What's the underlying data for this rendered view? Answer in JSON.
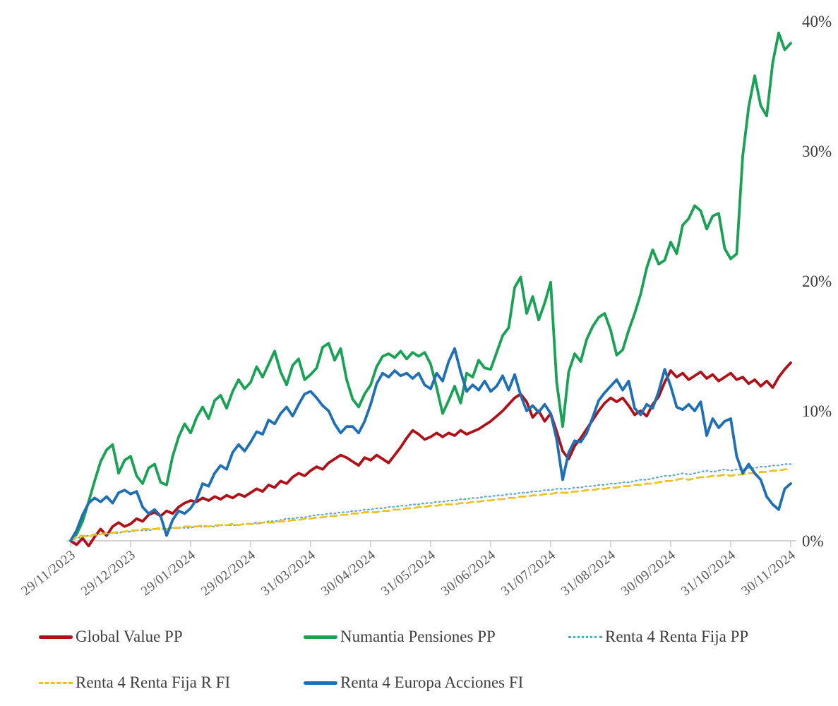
{
  "chart_data": {
    "type": "line",
    "title": "",
    "xlabel": "",
    "ylabel": "",
    "grid": false,
    "legend_position": "bottom",
    "y_axis_side": "right",
    "ylim": [
      -1,
      40
    ],
    "y_ticks": [
      {
        "label": "0%",
        "value": 0
      },
      {
        "label": "10%",
        "value": 10
      },
      {
        "label": "20%",
        "value": 20
      },
      {
        "label": "30%",
        "value": 30
      },
      {
        "label": "40%",
        "value": 40
      }
    ],
    "x_tick_labels": [
      "29/11/2023",
      "29/12/2023",
      "29/01/2024",
      "29/02/2024",
      "31/03/2024",
      "30/04/2024",
      "31/05/2024",
      "30/06/2024",
      "31/07/2024",
      "31/08/2024",
      "30/09/2024",
      "31/10/2024",
      "30/11/2024"
    ],
    "series": [
      {
        "name": "Global Value PP",
        "color": "#AE1117",
        "style": "solid",
        "values": [
          0.0,
          -0.3,
          0.2,
          -0.4,
          0.3,
          0.9,
          0.4,
          1.1,
          1.4,
          1.1,
          1.3,
          1.7,
          1.5,
          2.0,
          2.2,
          1.9,
          2.3,
          2.1,
          2.6,
          2.9,
          3.1,
          3.0,
          3.3,
          3.1,
          3.4,
          3.2,
          3.5,
          3.3,
          3.6,
          3.4,
          3.7,
          4.0,
          3.8,
          4.3,
          4.1,
          4.6,
          4.4,
          4.9,
          5.2,
          5.0,
          5.4,
          5.7,
          5.5,
          6.0,
          6.3,
          6.6,
          6.4,
          6.1,
          5.8,
          6.4,
          6.2,
          6.6,
          6.3,
          6.0,
          6.6,
          7.2,
          7.9,
          8.5,
          8.2,
          7.8,
          8.0,
          8.3,
          8.0,
          8.3,
          8.1,
          8.5,
          8.2,
          8.4,
          8.6,
          8.9,
          9.2,
          9.6,
          10.0,
          10.5,
          11.0,
          11.3,
          10.7,
          9.5,
          10.0,
          9.2,
          9.8,
          8.4,
          6.9,
          6.3,
          7.3,
          7.9,
          8.6,
          9.3,
          10.0,
          10.6,
          11.0,
          10.7,
          11.0,
          10.4,
          9.7,
          10.0,
          9.6,
          10.5,
          11.1,
          12.2,
          13.1,
          12.6,
          12.9,
          12.4,
          12.7,
          13.0,
          12.5,
          12.8,
          12.3,
          12.6,
          12.9,
          12.4,
          12.6,
          12.1,
          12.4,
          11.9,
          12.3,
          11.8,
          12.6,
          13.2,
          13.7
        ]
      },
      {
        "name": "Numantia Pensiones PP",
        "color": "#19A255",
        "style": "solid",
        "values": [
          0.0,
          0.5,
          1.5,
          3.0,
          4.6,
          6.1,
          7.0,
          7.4,
          5.2,
          6.2,
          6.5,
          5.0,
          4.4,
          5.6,
          5.9,
          4.5,
          4.3,
          6.5,
          8.0,
          9.0,
          8.3,
          9.5,
          10.3,
          9.4,
          10.8,
          11.2,
          10.2,
          11.5,
          12.4,
          11.7,
          12.2,
          13.4,
          12.6,
          13.6,
          14.6,
          13.0,
          12.0,
          13.5,
          14.0,
          12.4,
          12.8,
          13.3,
          14.9,
          15.2,
          13.9,
          14.8,
          12.4,
          10.9,
          10.3,
          11.3,
          12.0,
          13.4,
          14.2,
          14.4,
          14.1,
          14.6,
          14.0,
          14.5,
          14.2,
          14.5,
          13.6,
          11.8,
          9.8,
          10.8,
          11.9,
          10.6,
          12.9,
          12.6,
          13.9,
          13.3,
          13.2,
          14.5,
          15.8,
          16.4,
          19.5,
          20.3,
          17.5,
          18.8,
          17.0,
          18.3,
          19.9,
          12.2,
          8.8,
          13.0,
          14.4,
          13.8,
          15.5,
          16.5,
          17.2,
          17.5,
          16.2,
          14.3,
          14.7,
          16.2,
          17.5,
          19.0,
          21.0,
          22.4,
          21.3,
          21.6,
          23.0,
          22.1,
          24.3,
          24.8,
          25.8,
          25.4,
          24.0,
          25.0,
          25.2,
          22.5,
          21.7,
          22.1,
          29.6,
          33.4,
          35.8,
          33.5,
          32.7,
          36.8,
          39.1,
          37.8,
          38.3
        ]
      },
      {
        "name": "Renta 4 Renta Fija PP",
        "color": "#5BA8CC",
        "style": "dotted",
        "values": [
          0.0,
          0.2,
          0.3,
          0.4,
          0.4,
          0.5,
          0.5,
          0.6,
          0.6,
          0.7,
          0.7,
          0.8,
          0.8,
          0.8,
          0.9,
          0.9,
          0.9,
          1.0,
          1.0,
          1.0,
          1.0,
          1.1,
          1.1,
          1.1,
          1.1,
          1.2,
          1.2,
          1.2,
          1.2,
          1.3,
          1.3,
          1.4,
          1.4,
          1.5,
          1.5,
          1.6,
          1.7,
          1.7,
          1.8,
          1.8,
          1.9,
          2.0,
          2.0,
          2.1,
          2.1,
          2.2,
          2.2,
          2.3,
          2.3,
          2.4,
          2.4,
          2.5,
          2.5,
          2.6,
          2.6,
          2.7,
          2.7,
          2.8,
          2.8,
          2.9,
          2.9,
          3.0,
          3.0,
          3.1,
          3.1,
          3.2,
          3.2,
          3.3,
          3.3,
          3.4,
          3.4,
          3.5,
          3.5,
          3.6,
          3.6,
          3.7,
          3.7,
          3.8,
          3.8,
          3.9,
          3.9,
          4.0,
          4.0,
          4.0,
          4.1,
          4.1,
          4.2,
          4.2,
          4.3,
          4.3,
          4.4,
          4.4,
          4.5,
          4.5,
          4.6,
          4.7,
          4.7,
          4.8,
          4.9,
          5.0,
          5.0,
          5.1,
          5.2,
          5.1,
          5.2,
          5.3,
          5.4,
          5.3,
          5.4,
          5.5,
          5.4,
          5.5,
          5.5,
          5.6,
          5.6,
          5.7,
          5.7,
          5.8,
          5.8,
          5.9,
          5.9
        ]
      },
      {
        "name": "Renta 4 Renta Fija R FI",
        "color": "#EDC120",
        "style": "dashed",
        "values": [
          0.0,
          0.3,
          0.4,
          0.3,
          0.5,
          0.5,
          0.6,
          0.6,
          0.7,
          0.7,
          0.8,
          0.8,
          0.9,
          0.9,
          0.9,
          1.0,
          0.9,
          1.0,
          1.0,
          1.1,
          1.1,
          1.1,
          1.2,
          1.1,
          1.2,
          1.2,
          1.2,
          1.3,
          1.2,
          1.3,
          1.3,
          1.3,
          1.4,
          1.4,
          1.4,
          1.5,
          1.5,
          1.6,
          1.6,
          1.7,
          1.7,
          1.8,
          1.8,
          1.9,
          1.9,
          2.0,
          2.0,
          2.1,
          2.1,
          2.2,
          2.2,
          2.2,
          2.3,
          2.3,
          2.4,
          2.4,
          2.5,
          2.5,
          2.6,
          2.6,
          2.7,
          2.7,
          2.8,
          2.8,
          2.8,
          2.9,
          2.9,
          3.0,
          3.0,
          3.1,
          3.1,
          3.2,
          3.2,
          3.3,
          3.3,
          3.4,
          3.4,
          3.5,
          3.5,
          3.6,
          3.6,
          3.7,
          3.7,
          3.7,
          3.8,
          3.8,
          3.9,
          3.9,
          4.0,
          4.0,
          4.1,
          4.1,
          4.2,
          4.2,
          4.3,
          4.3,
          4.4,
          4.4,
          4.5,
          4.6,
          4.6,
          4.7,
          4.8,
          4.7,
          4.8,
          4.9,
          4.9,
          5.0,
          5.0,
          5.1,
          5.0,
          5.1,
          5.1,
          5.2,
          5.2,
          5.3,
          5.3,
          5.4,
          5.4,
          5.5,
          5.5
        ]
      },
      {
        "name": "Renta 4 Europa Acciones FI",
        "color": "#1F6FB5",
        "style": "solid",
        "values": [
          0.0,
          0.8,
          2.0,
          2.9,
          3.3,
          3.0,
          3.4,
          2.9,
          3.7,
          3.9,
          3.6,
          3.8,
          2.6,
          2.1,
          2.4,
          1.9,
          0.4,
          1.6,
          2.3,
          2.1,
          2.5,
          3.2,
          4.4,
          4.2,
          5.2,
          5.8,
          5.5,
          6.8,
          7.4,
          6.9,
          7.6,
          8.4,
          8.2,
          9.3,
          9.0,
          9.8,
          10.3,
          9.6,
          10.5,
          11.3,
          11.5,
          11.0,
          10.4,
          10.0,
          9.0,
          8.3,
          8.8,
          8.8,
          8.3,
          9.2,
          10.5,
          12.1,
          12.9,
          12.6,
          13.1,
          12.7,
          12.9,
          12.5,
          12.9,
          12.0,
          11.7,
          12.9,
          12.3,
          13.8,
          14.8,
          13.0,
          11.5,
          12.0,
          11.6,
          12.3,
          11.5,
          11.9,
          12.7,
          11.6,
          12.8,
          11.2,
          10.0,
          10.4,
          9.9,
          10.5,
          9.8,
          7.8,
          4.7,
          6.8,
          7.7,
          7.6,
          8.3,
          9.5,
          10.8,
          11.4,
          11.9,
          12.4,
          11.6,
          12.3,
          10.2,
          9.7,
          10.5,
          10.2,
          11.5,
          13.2,
          11.9,
          10.3,
          10.1,
          10.5,
          10.0,
          10.7,
          8.1,
          9.4,
          8.7,
          9.2,
          9.4,
          6.5,
          5.2,
          5.9,
          5.2,
          4.7,
          3.4,
          2.8,
          2.4,
          4.0,
          4.4
        ]
      }
    ]
  },
  "legend": {
    "rows": [
      [
        0,
        1,
        2
      ],
      [
        3,
        4
      ]
    ]
  }
}
